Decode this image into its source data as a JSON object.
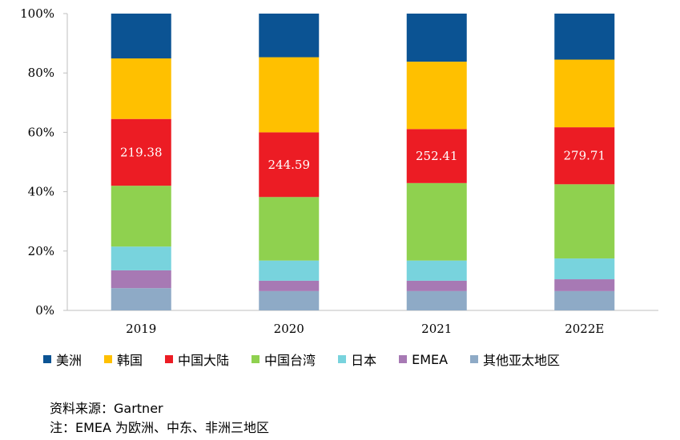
{
  "chart_data": {
    "type": "bar",
    "stacked": true,
    "categories": [
      "2019",
      "2020",
      "2021",
      "2022E"
    ],
    "yticks": [
      "0%",
      "20%",
      "40%",
      "60%",
      "80%",
      "100%"
    ],
    "ylim": [
      0,
      100
    ],
    "legend_position": "bottom",
    "series": [
      {
        "name": "其他亚太地区",
        "color": "#8eaac6",
        "values": [
          7.5,
          6.5,
          6.5,
          6.5
        ]
      },
      {
        "name": "EMEA",
        "color": "#a779b4",
        "values": [
          6.0,
          3.5,
          3.5,
          4.0
        ]
      },
      {
        "name": "日本",
        "color": "#78d3dd",
        "values": [
          8.0,
          6.8,
          6.8,
          7.0
        ]
      },
      {
        "name": "中国台湾",
        "color": "#8fd14f",
        "values": [
          20.5,
          21.4,
          26.1,
          25.0
        ]
      },
      {
        "name": "中国大陆",
        "color": "#ec1c24",
        "values": [
          22.5,
          21.8,
          18.2,
          19.2
        ]
      },
      {
        "name": "韩国",
        "color": "#ffc000",
        "values": [
          20.4,
          25.3,
          22.7,
          22.8
        ]
      },
      {
        "name": "美洲",
        "color": "#0b5393",
        "values": [
          15.1,
          14.7,
          16.2,
          15.5
        ]
      }
    ],
    "data_labels": [
      {
        "series": "中国大陆",
        "category": "2019",
        "text": "219.38"
      },
      {
        "series": "中国大陆",
        "category": "2020",
        "text": "244.59"
      },
      {
        "series": "中国大陆",
        "category": "2021",
        "text": "252.41"
      },
      {
        "series": "中国大陆",
        "category": "2022E",
        "text": "279.71"
      }
    ],
    "legend_order": [
      "美洲",
      "韩国",
      "中国大陆",
      "中国台湾",
      "日本",
      "EMEA",
      "其他亚太地区"
    ]
  },
  "notes": {
    "source": "资料来源：Gartner",
    "footnote": "注：EMEA 为欧洲、中东、非洲三地区"
  }
}
